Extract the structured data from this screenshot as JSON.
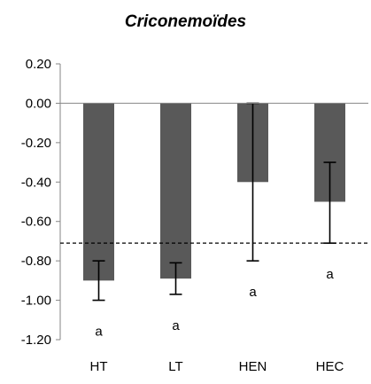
{
  "chart_data": {
    "type": "bar",
    "title": "Criconemoïdes",
    "categories": [
      "HT",
      "LT",
      "HEN",
      "HEC"
    ],
    "values": [
      -0.9,
      -0.89,
      -0.4,
      -0.5
    ],
    "error_low": [
      -1.0,
      -0.97,
      -0.8,
      -0.71
    ],
    "error_high": [
      -0.8,
      -0.81,
      0.0,
      -0.3
    ],
    "significance_letters": [
      "a",
      "a",
      "a",
      "a"
    ],
    "reference_line": -0.71,
    "yticks": [
      "0.20",
      "0.00",
      "-0.20",
      "-0.40",
      "-0.60",
      "-0.80",
      "-1.00",
      "-1.20"
    ],
    "ylim": [
      -1.2,
      0.2
    ],
    "grid": false,
    "bar_color": "#595959"
  }
}
